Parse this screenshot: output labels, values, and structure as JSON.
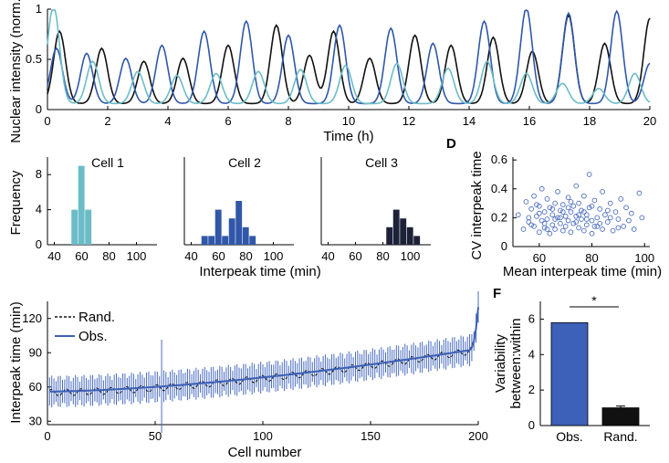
{
  "colors": {
    "cell1": "#6cbcc7",
    "cell2": "#3057a8",
    "cell3": "#1d2238",
    "black": "#111111",
    "obs": "#3d60b8",
    "rand": "#111111"
  },
  "panel_labels": {
    "d": "D",
    "f": "F"
  },
  "chart_data": [
    {
      "id": "timecourse",
      "type": "line",
      "xlabel": "Time (h)",
      "ylabel": "Nuclear intensity (norm.)",
      "xlim": [
        0,
        20
      ],
      "ylim": [
        0,
        1
      ],
      "x_ticks": [
        "0",
        "2",
        "4",
        "6",
        "8",
        "10",
        "12",
        "14",
        "16",
        "18",
        "20"
      ],
      "y_ticks": [
        "0",
        "0.5",
        "1"
      ],
      "series": [
        {
          "color_key": "black",
          "peaks": [
            0.4,
            1.8,
            3.2,
            4.5,
            6.0,
            7.6,
            8.7,
            9.5,
            10.7,
            12.2,
            13.4,
            14.8,
            16.1,
            17.3,
            18.5,
            20.0
          ],
          "amps": [
            0.72,
            0.55,
            0.42,
            0.45,
            0.58,
            0.78,
            0.48,
            0.72,
            0.45,
            0.68,
            0.58,
            0.66,
            0.52,
            0.88,
            0.6,
            0.85
          ]
        },
        {
          "color_key": "cell2",
          "peaks": [
            0.3,
            1.3,
            2.6,
            3.8,
            5.2,
            6.6,
            8.0,
            9.7,
            11.4,
            12.8,
            14.5,
            15.9,
            17.3,
            18.9,
            20.0
          ],
          "amps": [
            0.55,
            0.5,
            0.45,
            0.58,
            0.72,
            0.82,
            0.68,
            0.78,
            0.75,
            0.6,
            0.82,
            0.95,
            0.9,
            0.92,
            0.4
          ]
        },
        {
          "color_key": "cell1",
          "peaks": [
            0.2,
            1.5,
            3.0,
            4.3,
            5.6,
            7.0,
            8.4,
            9.9,
            11.6,
            13.3,
            14.6,
            15.9,
            17.1,
            18.3,
            19.5
          ],
          "amps": [
            0.98,
            0.42,
            0.32,
            0.28,
            0.3,
            0.32,
            0.34,
            0.38,
            0.4,
            0.35,
            0.42,
            0.3,
            0.2,
            0.15,
            0.3
          ]
        }
      ]
    },
    {
      "id": "histograms",
      "type": "bar",
      "xlabel": "Interpeak time (min)",
      "ylabel": "Frequency",
      "ylim": [
        0,
        10
      ],
      "y_ticks": [
        "0",
        "4",
        "8"
      ],
      "panels": [
        {
          "title": "Cell 1",
          "color_key": "cell1",
          "x_ticks": [
            "40",
            "60",
            "80",
            "100"
          ],
          "xlim": [
            35,
            115
          ],
          "bins": [
            55,
            60,
            65
          ],
          "counts": [
            4,
            9,
            4
          ]
        },
        {
          "title": "Cell 2",
          "color_key": "cell2",
          "x_ticks": [
            "40",
            "60",
            "80",
            "100"
          ],
          "xlim": [
            35,
            115
          ],
          "bins": [
            50,
            55,
            60,
            65,
            70,
            75,
            80,
            85
          ],
          "counts": [
            1,
            1,
            4,
            1,
            3,
            5,
            2,
            1
          ]
        },
        {
          "title": "Cell 3",
          "color_key": "cell3",
          "x_ticks": [
            "40",
            "60",
            "80",
            "100"
          ],
          "xlim": [
            35,
            115
          ],
          "bins": [
            85,
            90,
            95,
            100,
            105
          ],
          "counts": [
            2,
            4,
            3,
            2,
            1
          ]
        }
      ]
    },
    {
      "id": "cv_scatter",
      "type": "scatter",
      "xlabel": "Mean interpeak time (min)",
      "ylabel": "CV interpeak time",
      "xlim": [
        50,
        102
      ],
      "ylim": [
        0,
        0.62
      ],
      "x_ticks": [
        "60",
        "80",
        "100"
      ],
      "y_ticks": [
        "0",
        "0.2",
        "0.4",
        "0.6"
      ],
      "points": [
        [
          52,
          0.22
        ],
        [
          54,
          0.12
        ],
        [
          55,
          0.31
        ],
        [
          56,
          0.17
        ],
        [
          57,
          0.26
        ],
        [
          58,
          0.14
        ],
        [
          58,
          0.35
        ],
        [
          59,
          0.21
        ],
        [
          60,
          0.1
        ],
        [
          60,
          0.28
        ],
        [
          61,
          0.18
        ],
        [
          61,
          0.4
        ],
        [
          62,
          0.24
        ],
        [
          62,
          0.13
        ],
        [
          63,
          0.33
        ],
        [
          63,
          0.19
        ],
        [
          64,
          0.09
        ],
        [
          64,
          0.27
        ],
        [
          65,
          0.22
        ],
        [
          65,
          0.15
        ],
        [
          66,
          0.3
        ],
        [
          66,
          0.12
        ],
        [
          67,
          0.2
        ],
        [
          67,
          0.38
        ],
        [
          68,
          0.16
        ],
        [
          68,
          0.25
        ],
        [
          69,
          0.11
        ],
        [
          69,
          0.29
        ],
        [
          70,
          0.21
        ],
        [
          70,
          0.14
        ],
        [
          71,
          0.34
        ],
        [
          71,
          0.18
        ],
        [
          72,
          0.24
        ],
        [
          72,
          0.1
        ],
        [
          73,
          0.28
        ],
        [
          73,
          0.16
        ],
        [
          74,
          0.21
        ],
        [
          74,
          0.42
        ],
        [
          75,
          0.13
        ],
        [
          75,
          0.3
        ],
        [
          76,
          0.19
        ],
        [
          76,
          0.25
        ],
        [
          77,
          0.11
        ],
        [
          77,
          0.35
        ],
        [
          78,
          0.22
        ],
        [
          78,
          0.15
        ],
        [
          79,
          0.5
        ],
        [
          79,
          0.27
        ],
        [
          80,
          0.18
        ],
        [
          80,
          0.09
        ],
        [
          81,
          0.32
        ],
        [
          82,
          0.2
        ],
        [
          82,
          0.14
        ],
        [
          83,
          0.26
        ],
        [
          84,
          0.38
        ],
        [
          84,
          0.12
        ],
        [
          85,
          0.22
        ],
        [
          86,
          0.17
        ],
        [
          87,
          0.3
        ],
        [
          88,
          0.11
        ],
        [
          89,
          0.24
        ],
        [
          90,
          0.19
        ],
        [
          91,
          0.33
        ],
        [
          92,
          0.14
        ],
        [
          93,
          0.27
        ],
        [
          94,
          0.18
        ],
        [
          95,
          0.23
        ],
        [
          96,
          0.12
        ],
        [
          98,
          0.37
        ],
        [
          99,
          0.2
        ],
        [
          56,
          0.2
        ],
        [
          59,
          0.29
        ],
        [
          62,
          0.16
        ],
        [
          65,
          0.26
        ],
        [
          68,
          0.2
        ],
        [
          71,
          0.27
        ],
        [
          74,
          0.17
        ],
        [
          77,
          0.24
        ],
        [
          80,
          0.28
        ],
        [
          83,
          0.16
        ],
        [
          86,
          0.25
        ],
        [
          57,
          0.15
        ],
        [
          60,
          0.23
        ],
        [
          63,
          0.12
        ],
        [
          66,
          0.19
        ],
        [
          69,
          0.24
        ],
        [
          72,
          0.31
        ],
        [
          75,
          0.22
        ],
        [
          78,
          0.19
        ],
        [
          81,
          0.14
        ],
        [
          87,
          0.2
        ],
        [
          90,
          0.13
        ]
      ]
    },
    {
      "id": "interpeak_by_cell",
      "type": "line",
      "xlabel": "Cell number",
      "ylabel": "Interpeak time (min)",
      "xlim": [
        0,
        200
      ],
      "ylim": [
        27,
        135
      ],
      "x_ticks": [
        "0",
        "50",
        "100",
        "150",
        "200"
      ],
      "y_ticks": [
        "30",
        "60",
        "90",
        "120"
      ],
      "legend": [
        "Rand.",
        "Obs."
      ],
      "obs_mean": {
        "start": 56,
        "end": 92,
        "first_n": 55,
        "last_value": 130
      },
      "error_bar_typical": 14
    },
    {
      "id": "variability",
      "type": "bar",
      "ylabel": "Variability between:within",
      "ylim": [
        0,
        7
      ],
      "y_ticks": [
        "0",
        "2",
        "4",
        "6"
      ],
      "categories": [
        "Obs.",
        "Rand."
      ],
      "values": [
        5.8,
        1.0
      ],
      "errors": [
        0,
        0.1
      ],
      "significance": "*"
    }
  ]
}
